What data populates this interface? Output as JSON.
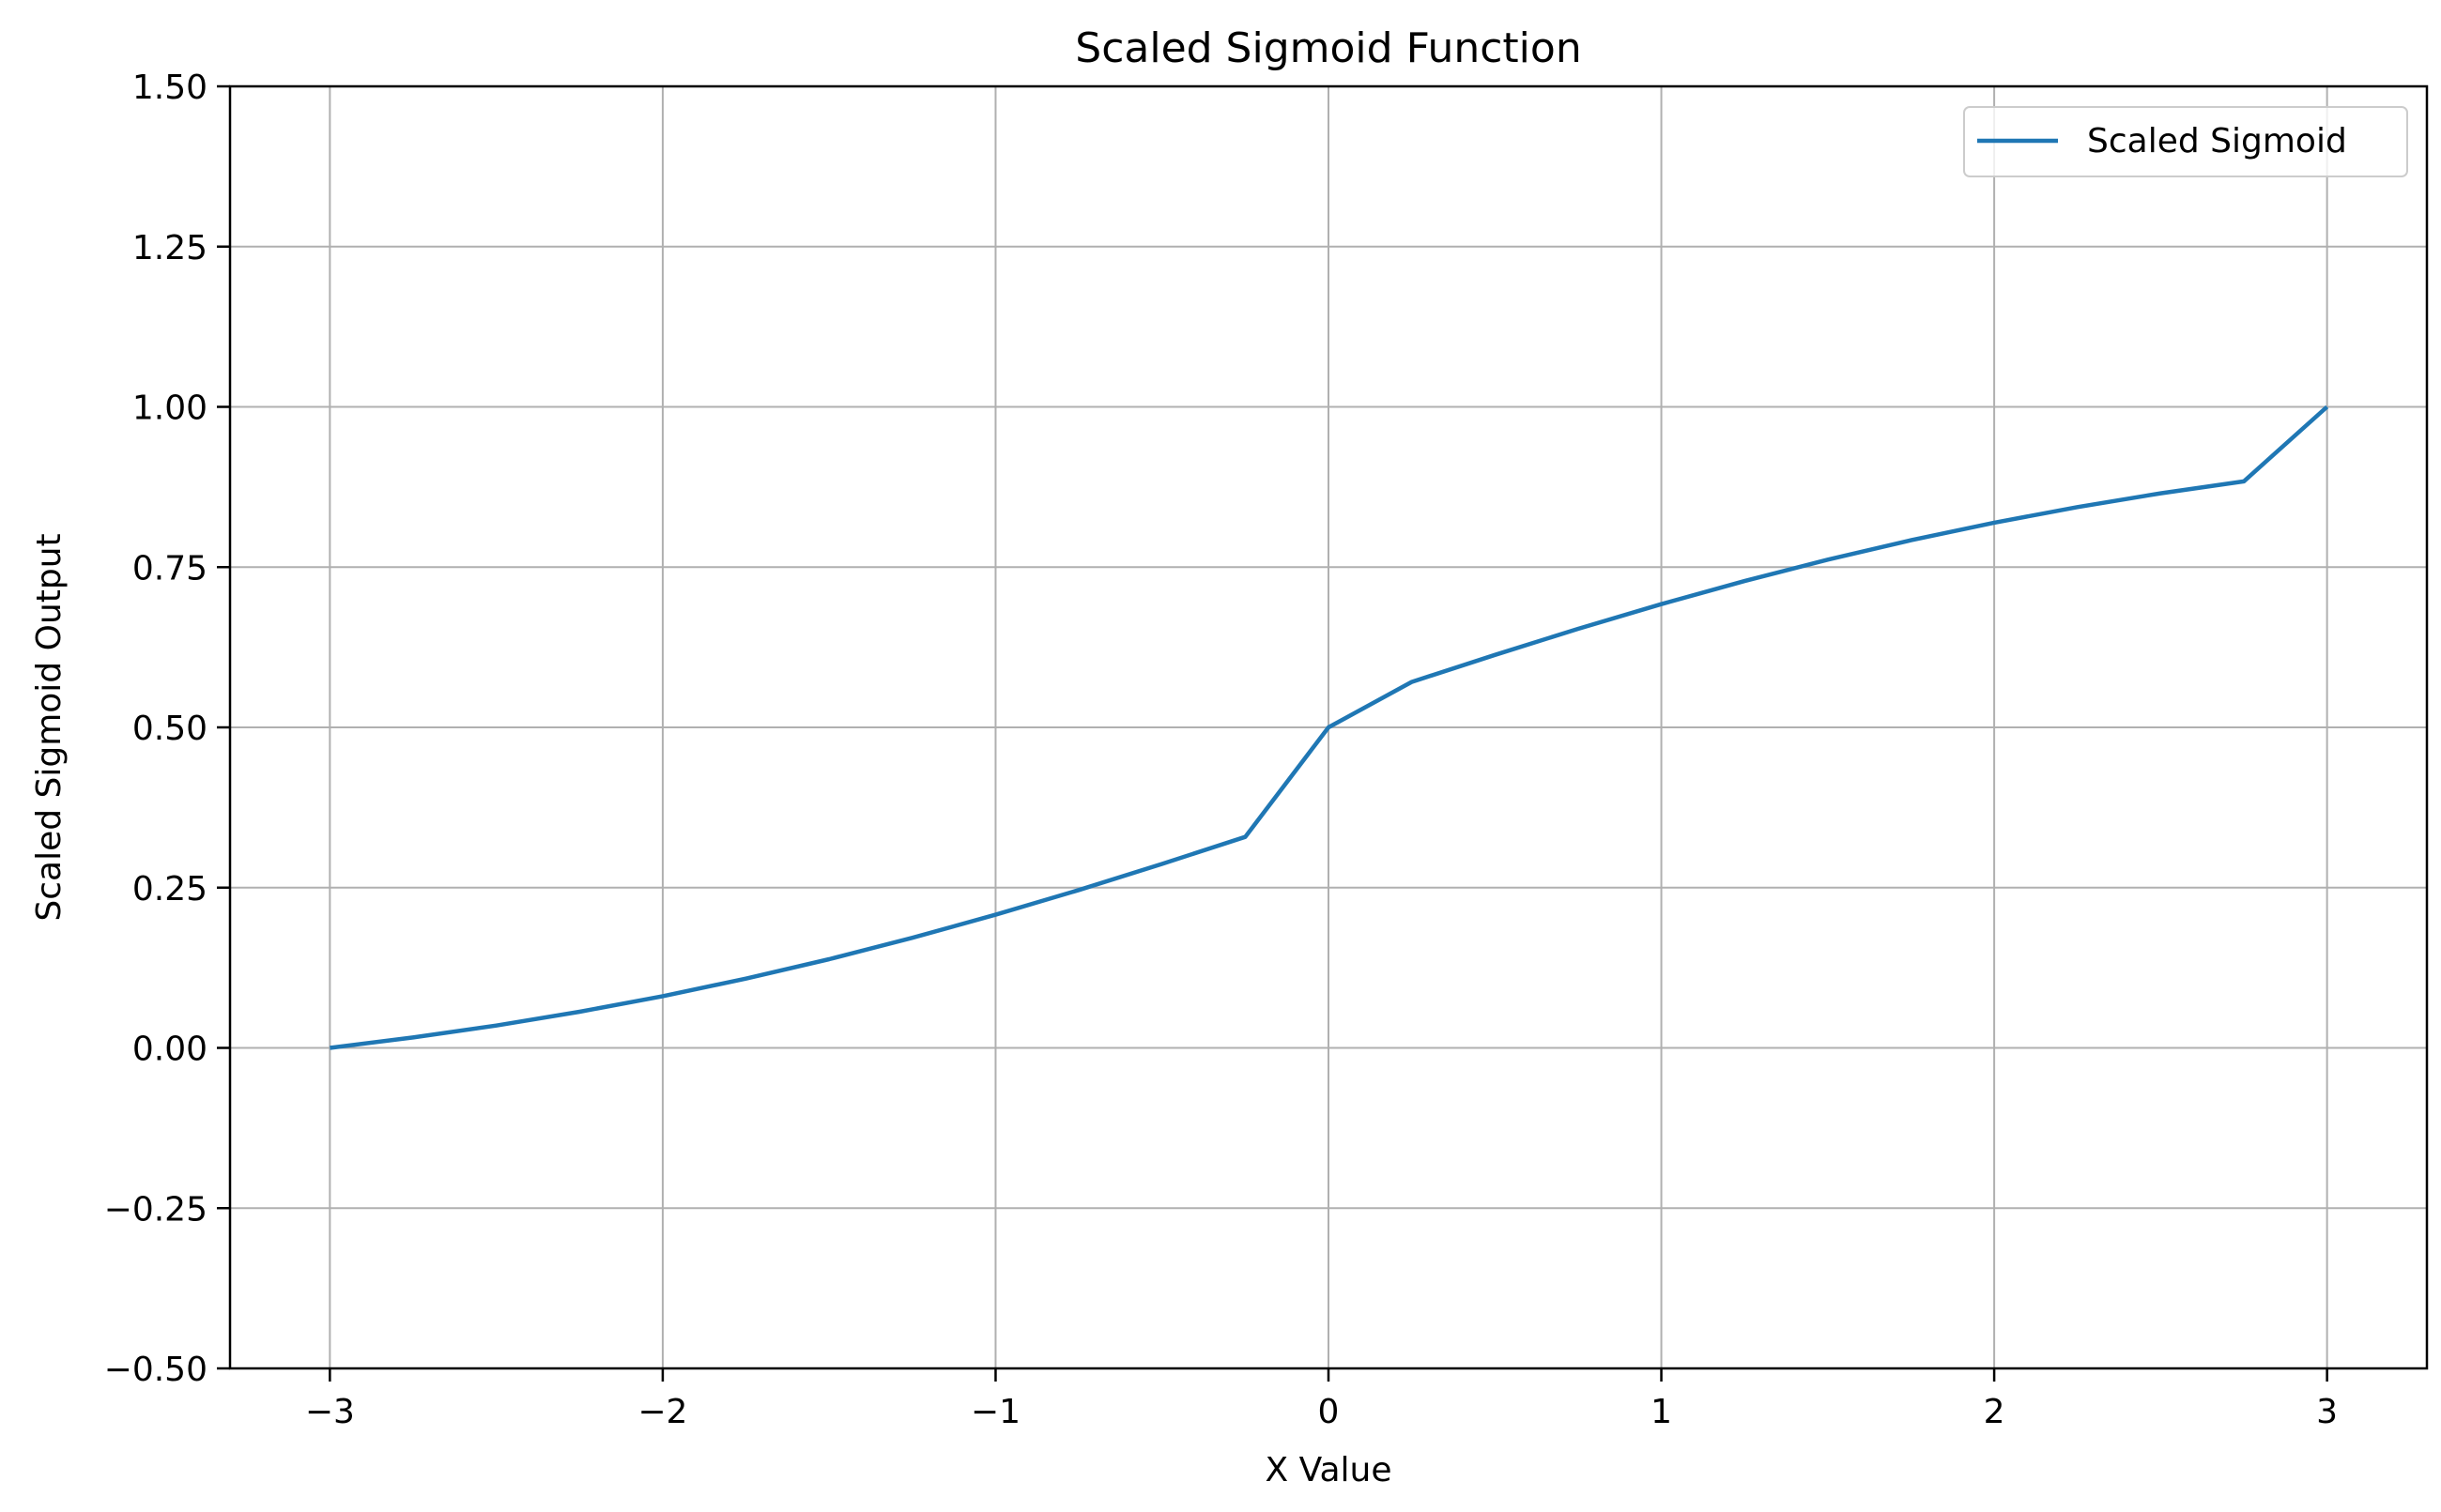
{
  "chart_data": {
    "type": "line",
    "title": "Scaled Sigmoid Function",
    "xlabel": "X Value",
    "ylabel": "Scaled Sigmoid Output",
    "xlim": [
      -3.3,
      3.3
    ],
    "ylim": [
      -0.5,
      1.5
    ],
    "x_ticks": [
      -3,
      -2,
      -1,
      0,
      1,
      2,
      3
    ],
    "x_tick_labels": [
      "−3",
      "−2",
      "−1",
      "0",
      "1",
      "2",
      "3"
    ],
    "y_ticks": [
      -0.5,
      -0.25,
      0,
      0.25,
      0.5,
      0.75,
      1.0,
      1.25,
      1.5
    ],
    "y_tick_labels": [
      "−0.50",
      "−0.25",
      "0.00",
      "0.25",
      "0.50",
      "0.75",
      "1.00",
      "1.25",
      "1.50"
    ],
    "grid": true,
    "legend_position": "top-right",
    "series": [
      {
        "name": "Scaled Sigmoid",
        "color": "#1f77b4",
        "x": [
          -3.0,
          -2.75,
          -2.5,
          -2.25,
          -2.0,
          -1.75,
          -1.5,
          -1.25,
          -1.0,
          -0.75,
          -0.5,
          -0.25,
          0.0,
          0.25,
          0.5,
          0.75,
          1.0,
          1.25,
          1.5,
          1.75,
          2.0,
          2.25,
          2.5,
          2.75,
          3.0
        ],
        "y": [
          0.0,
          0.0162,
          0.0349,
          0.0564,
          0.0807,
          0.108,
          0.1384,
          0.1717,
          0.2077,
          0.2462,
          0.2869,
          0.3291,
          0.5,
          0.5709,
          0.6131,
          0.6538,
          0.6923,
          0.7283,
          0.7616,
          0.792,
          0.8193,
          0.8436,
          0.8651,
          0.8838,
          1.0
        ]
      }
    ]
  }
}
